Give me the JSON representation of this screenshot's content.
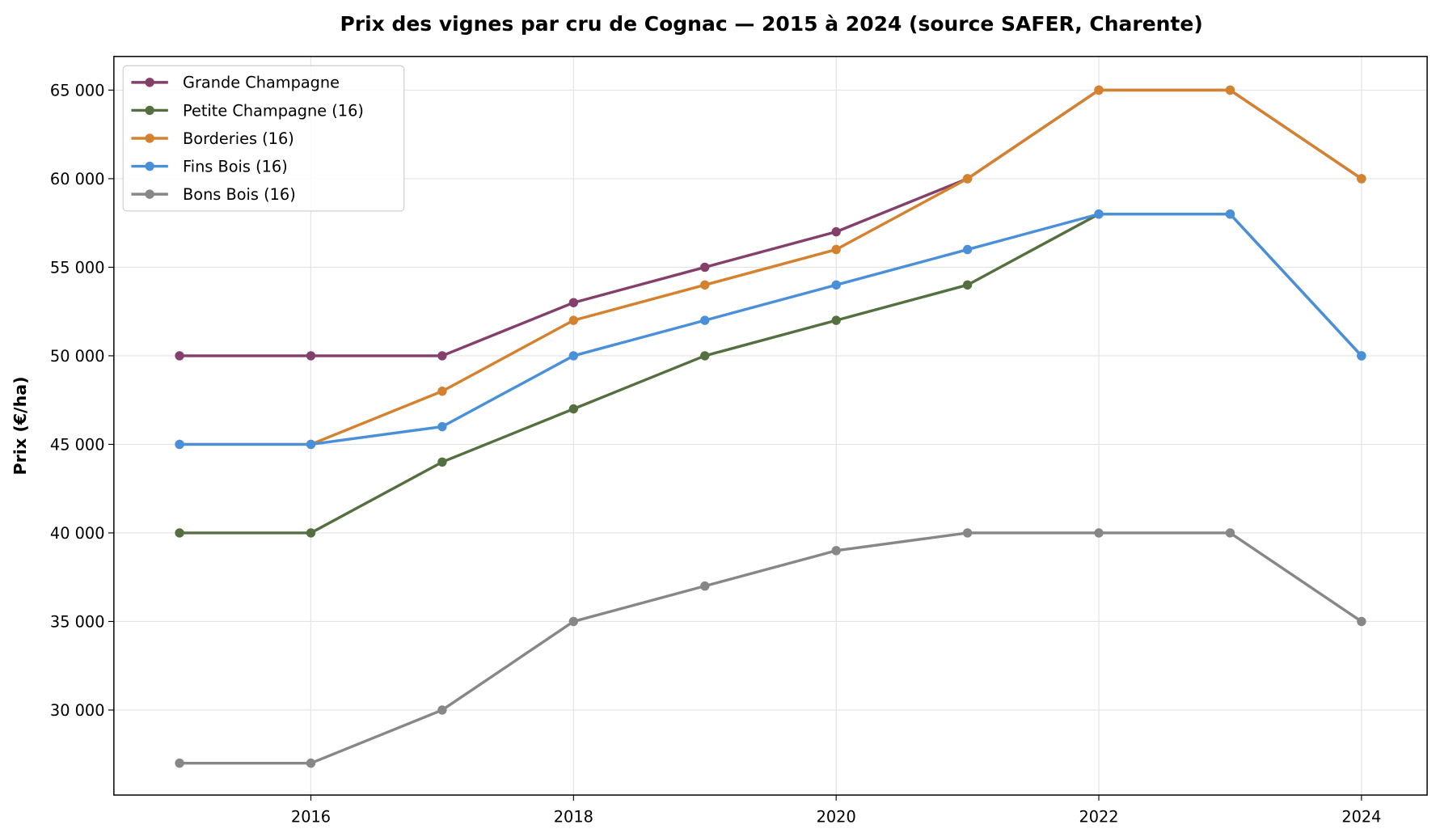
{
  "chart_data": {
    "type": "line",
    "title": "Prix des vignes par cru de Cognac — 2015 à 2024 (source SAFER, Charente)",
    "xlabel": "",
    "ylabel": "Prix (€/ha)",
    "x": [
      2015,
      2016,
      2017,
      2018,
      2019,
      2020,
      2021,
      2022,
      2023,
      2024
    ],
    "xticks": [
      2016,
      2018,
      2020,
      2022,
      2024
    ],
    "xtick_labels": [
      "2016",
      "2018",
      "2020",
      "2022",
      "2024"
    ],
    "yticks": [
      30000,
      35000,
      40000,
      45000,
      50000,
      55000,
      60000,
      65000
    ],
    "ytick_labels": [
      "30 000",
      "35 000",
      "40 000",
      "45 000",
      "50 000",
      "55 000",
      "60 000",
      "65 000"
    ],
    "xlim": [
      2014.5,
      2024.5
    ],
    "ylim": [
      25200,
      66900
    ],
    "grid": true,
    "legend_placement": "top-left",
    "series": [
      {
        "name": "Grande Champagne",
        "color": "#843f6b",
        "values": [
          50000,
          50000,
          50000,
          53000,
          55000,
          57000,
          60000,
          65000,
          65000,
          60000
        ]
      },
      {
        "name": "Petite Champagne (16)",
        "color": "#557040",
        "values": [
          40000,
          40000,
          44000,
          47000,
          50000,
          52000,
          54000,
          58000,
          58000,
          50000
        ]
      },
      {
        "name": "Borderies (16)",
        "color": "#d4822d",
        "values": [
          45000,
          45000,
          48000,
          52000,
          54000,
          56000,
          60000,
          65000,
          65000,
          60000
        ]
      },
      {
        "name": "Fins Bois (16)",
        "color": "#4a90d9",
        "values": [
          45000,
          45000,
          46000,
          50000,
          52000,
          54000,
          56000,
          58000,
          58000,
          50000
        ]
      },
      {
        "name": "Bons Bois (16)",
        "color": "#878787",
        "values": [
          27000,
          27000,
          30000,
          35000,
          37000,
          39000,
          40000,
          40000,
          40000,
          35000
        ]
      }
    ]
  }
}
